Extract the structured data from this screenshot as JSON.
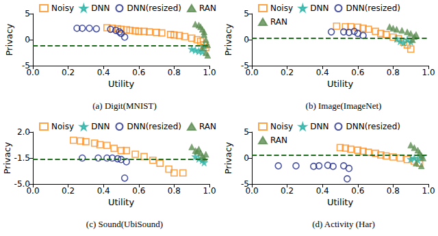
{
  "chart_data": [
    {
      "type": "scatter",
      "title": "(a) Digit(MNIST)",
      "x_label": "Utility",
      "y_label": "Privacy",
      "xlim": [
        0,
        1
      ],
      "xticks": [
        {
          "value": 0,
          "label": "0.0"
        },
        {
          "value": 0.2,
          "label": "0.2"
        },
        {
          "value": 0.4,
          "label": "0.4"
        },
        {
          "value": 0.6,
          "label": "0.6"
        },
        {
          "value": 0.8,
          "label": "0.8"
        },
        {
          "value": 1,
          "label": "1.0"
        }
      ],
      "ylim": [
        -5,
        5
      ],
      "yticks": [
        -5,
        0,
        5
      ],
      "grid": false,
      "legend": "top",
      "reference_line": {
        "y": -1.2,
        "color": "#1b6b1b",
        "line_style": "dashed"
      },
      "series": [
        {
          "name": "Noisy",
          "color": "#ff8c1a",
          "marker": "open_square",
          "x": [
            0.42,
            0.45,
            0.48,
            0.5,
            0.53,
            0.55,
            0.58,
            0.6,
            0.63,
            0.66,
            0.7,
            0.73,
            0.78,
            0.8,
            0.83,
            0.86,
            0.9,
            0.93,
            0.95,
            0.97,
            0.98
          ],
          "values": [
            2.3,
            2.2,
            2.1,
            2.0,
            1.9,
            1.8,
            1.7,
            1.6,
            1.6,
            1.5,
            1.4,
            1.3,
            1.0,
            0.9,
            0.8,
            0.6,
            0.3,
            0.0,
            -0.3,
            -1.0,
            -1.5
          ]
        },
        {
          "name": "DNN",
          "color": "#2bb3a6",
          "marker": "star",
          "x": [
            0.9,
            0.92,
            0.94,
            0.96,
            0.97
          ],
          "values": [
            -1.8,
            -2.0,
            -2.2,
            -2.3,
            -1.2
          ]
        },
        {
          "name": "DNN(resized)",
          "color": "#1f2a8a",
          "marker": "open_circle",
          "x": [
            0.25,
            0.28,
            0.32,
            0.36,
            0.44,
            0.47,
            0.49,
            0.5,
            0.52
          ],
          "values": [
            2.2,
            2.2,
            2.2,
            2.1,
            2.0,
            1.8,
            1.5,
            1.2,
            0.5
          ]
        },
        {
          "name": "RAN",
          "color": "#5b8c50",
          "marker": "triangle",
          "x": [
            0.92,
            0.94,
            0.95,
            0.96,
            0.97,
            0.98,
            0.99,
            0.98,
            0.99,
            0.97,
            0.96
          ],
          "values": [
            3.0,
            2.8,
            2.5,
            2.0,
            1.0,
            0.0,
            -1.0,
            -2.5,
            -3.0,
            1.5,
            -1.5
          ]
        }
      ]
    },
    {
      "type": "scatter",
      "title": "(b) Image(ImageNet)",
      "x_label": "Utility",
      "y_label": "Privacy",
      "xlim": [
        0,
        1
      ],
      "xticks": [
        {
          "value": 0,
          "label": "0.0"
        },
        {
          "value": 0.2,
          "label": "0.2"
        },
        {
          "value": 0.4,
          "label": "0.4"
        },
        {
          "value": 0.6,
          "label": "0.6"
        },
        {
          "value": 0.8,
          "label": "0.8"
        },
        {
          "value": 1,
          "label": "1.0"
        }
      ],
      "ylim": [
        -5,
        5
      ],
      "yticks": [
        -5,
        0,
        5
      ],
      "grid": false,
      "legend": "top",
      "reference_line": {
        "y": 0.3,
        "color": "#1b6b1b",
        "line_style": "dashed"
      },
      "series": [
        {
          "name": "Noisy",
          "color": "#ff8c1a",
          "marker": "open_square",
          "x": [
            0.48,
            0.53,
            0.56,
            0.6,
            0.63,
            0.66,
            0.7,
            0.73,
            0.76,
            0.8,
            0.83,
            0.86,
            0.88,
            0.9
          ],
          "values": [
            2.6,
            2.5,
            2.5,
            2.4,
            2.2,
            2.0,
            1.6,
            1.2,
            1.0,
            0.5,
            0.2,
            -0.5,
            -1.0,
            -1.8
          ]
        },
        {
          "name": "DNN",
          "color": "#2bb3a6",
          "marker": "star",
          "x": [
            0.82,
            0.84,
            0.86,
            0.88,
            0.9
          ],
          "values": [
            0.2,
            -0.3,
            -0.6,
            0.0,
            -0.4
          ]
        },
        {
          "name": "DNN(resized)",
          "color": "#1f2a8a",
          "marker": "open_circle",
          "x": [
            0.45,
            0.52,
            0.55,
            0.58,
            0.6,
            0.63
          ],
          "values": [
            1.5,
            1.5,
            1.4,
            1.6,
            1.2,
            0.8
          ]
        },
        {
          "name": "RAN",
          "color": "#5b8c50",
          "marker": "triangle",
          "x": [
            0.78,
            0.8,
            0.82,
            0.85,
            0.88,
            0.9,
            0.92,
            0.91,
            0.93
          ],
          "values": [
            2.5,
            2.2,
            2.0,
            1.8,
            1.5,
            1.2,
            0.6,
            0.0,
            1.0
          ]
        }
      ]
    },
    {
      "type": "scatter",
      "title": "(c) Sound(UbiSound)",
      "x_label": "Utility",
      "y_label": "Privacy",
      "xlim": [
        0,
        1
      ],
      "xticks": [
        {
          "value": 0,
          "label": "0.0"
        },
        {
          "value": 0.2,
          "label": "0.2"
        },
        {
          "value": 0.4,
          "label": "0.4"
        },
        {
          "value": 0.6,
          "label": "0.6"
        },
        {
          "value": 0.8,
          "label": "0.8"
        },
        {
          "value": 1,
          "label": "1.0"
        }
      ],
      "ylim": [
        -5,
        2
      ],
      "yticks": [
        {
          "value": -5,
          "label": "-5.0"
        },
        {
          "value": -1.5,
          "label": "-1.5"
        },
        {
          "value": 2,
          "label": "2.0"
        }
      ],
      "grid": false,
      "legend": "top",
      "reference_line": {
        "y": -1.7,
        "color": "#1b6b1b",
        "line_style": "dashed"
      },
      "series": [
        {
          "name": "Noisy",
          "color": "#ff8c1a",
          "marker": "open_square",
          "x": [
            0.23,
            0.27,
            0.3,
            0.35,
            0.38,
            0.42,
            0.46,
            0.5,
            0.53,
            0.58,
            0.63,
            0.68,
            0.72,
            0.77,
            0.8,
            0.85
          ],
          "values": [
            0.9,
            0.8,
            0.7,
            0.5,
            0.3,
            0.2,
            -0.2,
            -0.5,
            -0.5,
            -1.0,
            -1.3,
            -1.8,
            -2.2,
            -3.0,
            -3.5,
            -3.5
          ]
        },
        {
          "name": "DNN",
          "color": "#2bb3a6",
          "marker": "star",
          "x": [
            0.92,
            0.94,
            0.96,
            0.97
          ],
          "values": [
            -1.3,
            -1.6,
            -1.8,
            -2.1
          ]
        },
        {
          "name": "DNN(resized)",
          "color": "#1f2a8a",
          "marker": "open_circle",
          "x": [
            0.28,
            0.37,
            0.42,
            0.45,
            0.48,
            0.5,
            0.53,
            0.52
          ],
          "values": [
            -1.5,
            -1.5,
            -1.5,
            -1.5,
            -1.6,
            -1.7,
            -2.0,
            -4.2
          ]
        },
        {
          "name": "RAN",
          "color": "#5b8c50",
          "marker": "triangle",
          "x": [
            0.9,
            0.92,
            0.93,
            0.95,
            0.96,
            0.97,
            0.98,
            0.94
          ],
          "values": [
            0.0,
            -0.5,
            -0.6,
            -0.8,
            -1.2,
            -1.5,
            -1.0,
            -0.3
          ]
        }
      ]
    },
    {
      "type": "scatter",
      "title": "(d) Activity (Har)",
      "x_label": "Utility",
      "y_label": "Privacy",
      "xlim": [
        0,
        1
      ],
      "xticks": [
        {
          "value": 0,
          "label": "0.0"
        },
        {
          "value": 0.2,
          "label": "0.2"
        },
        {
          "value": 0.4,
          "label": "0.4"
        },
        {
          "value": 0.6,
          "label": "0.6"
        },
        {
          "value": 0.8,
          "label": "0.8"
        },
        {
          "value": 1,
          "label": "1.0"
        }
      ],
      "ylim": [
        -5,
        5
      ],
      "yticks": [
        -5,
        0,
        5
      ],
      "grid": false,
      "legend": "top",
      "reference_line": {
        "y": 0.5,
        "color": "#1b6b1b",
        "line_style": "dashed"
      },
      "series": [
        {
          "name": "Noisy",
          "color": "#ff8c1a",
          "marker": "open_square",
          "x": [
            0.5,
            0.53,
            0.56,
            0.6,
            0.63,
            0.66,
            0.7,
            0.73,
            0.76,
            0.8,
            0.84,
            0.88,
            0.92,
            0.95
          ],
          "values": [
            2.0,
            1.9,
            1.7,
            1.5,
            1.3,
            1.1,
            0.9,
            0.6,
            0.4,
            0.2,
            0.0,
            -0.3,
            -0.6,
            -1.0
          ]
        },
        {
          "name": "DNN",
          "color": "#2bb3a6",
          "marker": "star",
          "x": [
            0.9,
            0.92,
            0.94,
            0.96
          ],
          "values": [
            -0.2,
            0.0,
            -0.4,
            0.2
          ]
        },
        {
          "name": "DNN(resized)",
          "color": "#1f2a8a",
          "marker": "open_circle",
          "x": [
            0.15,
            0.25,
            0.35,
            0.38,
            0.43,
            0.46,
            0.52,
            0.55,
            0.54
          ],
          "values": [
            -1.5,
            -1.5,
            -1.6,
            -1.5,
            -1.4,
            -1.6,
            -1.5,
            -2.0,
            -4.0
          ]
        },
        {
          "name": "RAN",
          "color": "#5b8c50",
          "marker": "triangle",
          "x": [
            0.9,
            0.92,
            0.94,
            0.95,
            0.96,
            0.97,
            0.93,
            0.96
          ],
          "values": [
            2.5,
            2.0,
            1.5,
            1.0,
            0.5,
            0.0,
            -1.0,
            -1.5
          ]
        }
      ]
    }
  ]
}
